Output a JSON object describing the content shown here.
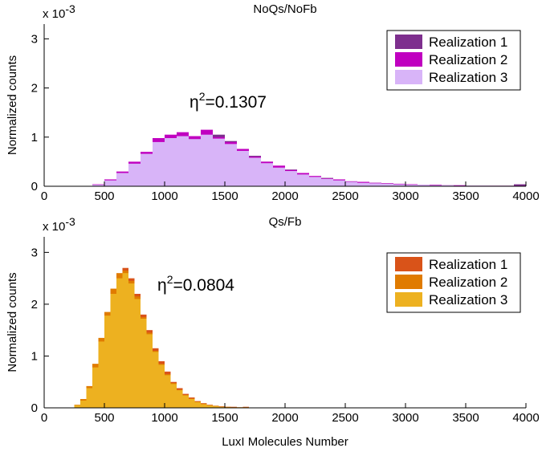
{
  "chart_data": [
    {
      "type": "histogram",
      "title": "NoQs/NoFb",
      "ylabel": "Normalized counts",
      "xlabel": "",
      "y_exponent_label": "x 10",
      "y_exponent_power": "-3",
      "xlim": [
        0,
        4000
      ],
      "ylim": [
        0,
        3.3
      ],
      "xticks": [
        "0",
        "500",
        "1000",
        "1500",
        "2000",
        "2500",
        "3000",
        "3500",
        "4000"
      ],
      "yticks": [
        "0",
        "1",
        "2",
        "3"
      ],
      "legend_position": "top-right",
      "annotation": {
        "eta": "η",
        "power": "2",
        "text": "=0.1307"
      },
      "series": [
        {
          "name": "Realization 1",
          "color": "#7E2F8E",
          "x": [
            400,
            500,
            600,
            700,
            800,
            900,
            1000,
            1100,
            1200,
            1300,
            1400,
            1500,
            1600,
            1700,
            1800,
            1900,
            2000,
            2100,
            2200,
            2300,
            2400,
            2500,
            2600,
            2700,
            2800,
            2900,
            3000,
            3100,
            3200,
            3300,
            3400,
            3500,
            3600,
            3700,
            3800,
            3900
          ],
          "values": [
            0.03,
            0.12,
            0.28,
            0.45,
            0.68,
            0.95,
            1.03,
            1.08,
            1.0,
            1.12,
            1.05,
            0.92,
            0.75,
            0.62,
            0.5,
            0.4,
            0.34,
            0.26,
            0.2,
            0.17,
            0.13,
            0.1,
            0.08,
            0.07,
            0.06,
            0.05,
            0.04,
            0.03,
            0.03,
            0.02,
            0.02,
            0.01,
            0.01,
            0.01,
            0.01,
            0.04
          ]
        },
        {
          "name": "Realization 2",
          "color": "#C000C0",
          "x": [
            400,
            500,
            600,
            700,
            800,
            900,
            1000,
            1100,
            1200,
            1300,
            1400,
            1500,
            1600,
            1700,
            1800,
            1900,
            2000,
            2100,
            2200,
            2300,
            2400,
            2500,
            2600,
            2700,
            2800,
            2900,
            3000,
            3100,
            3200,
            3300,
            3400,
            3500,
            3600,
            3700,
            3800,
            3900
          ],
          "values": [
            0.04,
            0.14,
            0.3,
            0.5,
            0.7,
            0.98,
            1.05,
            1.1,
            1.02,
            1.15,
            1.0,
            0.9,
            0.76,
            0.6,
            0.5,
            0.42,
            0.33,
            0.27,
            0.21,
            0.16,
            0.14,
            0.1,
            0.09,
            0.07,
            0.06,
            0.05,
            0.04,
            0.03,
            0.03,
            0.02,
            0.02,
            0.01,
            0.01,
            0.01,
            0.01,
            0.01
          ]
        },
        {
          "name": "Realization 3",
          "color": "#D8B4F8",
          "x": [
            400,
            500,
            600,
            700,
            800,
            900,
            1000,
            1100,
            1200,
            1300,
            1400,
            1500,
            1600,
            1700,
            1800,
            1900,
            2000,
            2100,
            2200,
            2300,
            2400,
            2500,
            2600,
            2700,
            2800,
            2900,
            3000,
            3100,
            3200,
            3300,
            3400,
            3500,
            3600,
            3700,
            3800,
            3900
          ],
          "values": [
            0.03,
            0.12,
            0.27,
            0.46,
            0.66,
            0.9,
            0.98,
            1.02,
            0.96,
            1.05,
            0.97,
            0.86,
            0.72,
            0.58,
            0.47,
            0.38,
            0.31,
            0.24,
            0.19,
            0.15,
            0.12,
            0.09,
            0.07,
            0.06,
            0.05,
            0.04,
            0.03,
            0.03,
            0.02,
            0.02,
            0.01,
            0.01,
            0.01,
            0.0,
            0.0,
            0.0
          ]
        }
      ]
    },
    {
      "type": "histogram",
      "title": "Qs/Fb",
      "ylabel": "Normalized counts",
      "xlabel": "LuxI Molecules Number",
      "y_exponent_label": "x 10",
      "y_exponent_power": "-3",
      "xlim": [
        0,
        4000
      ],
      "ylim": [
        0,
        3.3
      ],
      "xticks": [
        "0",
        "500",
        "1000",
        "1500",
        "2000",
        "2500",
        "3000",
        "3500",
        "4000"
      ],
      "yticks": [
        "0",
        "1",
        "2",
        "3"
      ],
      "legend_position": "top-right",
      "annotation": {
        "eta": "η",
        "power": "2",
        "text": "=0.0804"
      },
      "series": [
        {
          "name": "Realization 1",
          "color": "#D95319",
          "x": [
            250,
            300,
            350,
            400,
            450,
            500,
            550,
            600,
            650,
            700,
            750,
            800,
            850,
            900,
            950,
            1000,
            1050,
            1100,
            1150,
            1200,
            1250,
            1300,
            1350,
            1400,
            1450,
            1500,
            1550,
            1600,
            1650
          ],
          "values": [
            0.05,
            0.15,
            0.4,
            0.8,
            1.3,
            1.8,
            2.25,
            2.55,
            2.7,
            2.5,
            2.2,
            1.8,
            1.5,
            1.15,
            0.9,
            0.7,
            0.5,
            0.38,
            0.27,
            0.2,
            0.13,
            0.09,
            0.06,
            0.04,
            0.03,
            0.02,
            0.02,
            0.01,
            0.02
          ]
        },
        {
          "name": "Realization 2",
          "color": "#E07B00",
          "x": [
            250,
            300,
            350,
            400,
            450,
            500,
            550,
            600,
            650,
            700,
            750,
            800,
            850,
            900,
            950,
            1000,
            1050,
            1100,
            1150,
            1200,
            1250,
            1300,
            1350,
            1400,
            1450,
            1500,
            1550,
            1600,
            1650
          ],
          "values": [
            0.06,
            0.17,
            0.42,
            0.85,
            1.35,
            1.85,
            2.3,
            2.6,
            2.65,
            2.45,
            2.15,
            1.75,
            1.45,
            1.1,
            0.85,
            0.65,
            0.48,
            0.35,
            0.25,
            0.18,
            0.12,
            0.08,
            0.05,
            0.04,
            0.02,
            0.02,
            0.01,
            0.01,
            0.01
          ]
        },
        {
          "name": "Realization 3",
          "color": "#EDB120",
          "x": [
            250,
            300,
            350,
            400,
            450,
            500,
            550,
            600,
            650,
            700,
            750,
            800,
            850,
            900,
            950,
            1000,
            1050,
            1100,
            1150,
            1200,
            1250,
            1300,
            1350,
            1400,
            1450,
            1500,
            1550,
            1600,
            1650
          ],
          "values": [
            0.05,
            0.14,
            0.38,
            0.78,
            1.28,
            1.78,
            2.2,
            2.5,
            2.6,
            2.4,
            2.1,
            1.72,
            1.42,
            1.08,
            0.83,
            0.63,
            0.46,
            0.34,
            0.24,
            0.17,
            0.11,
            0.07,
            0.05,
            0.03,
            0.02,
            0.01,
            0.01,
            0.01,
            0.01
          ]
        }
      ]
    }
  ]
}
